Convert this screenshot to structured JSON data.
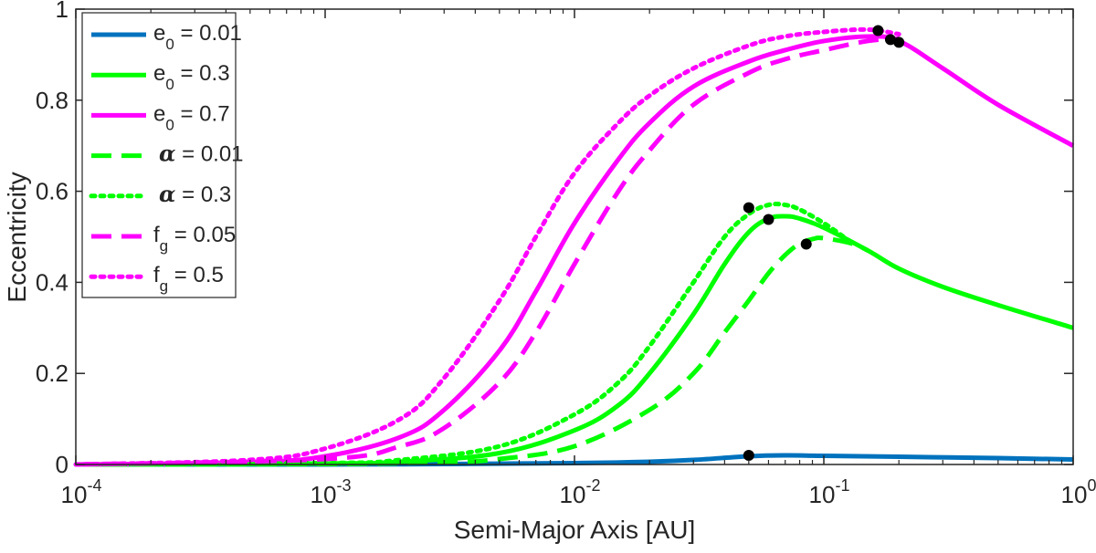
{
  "chart_data": {
    "type": "line",
    "title": "",
    "xlabel": "Semi-Major Axis [AU]",
    "ylabel": "Eccentricity",
    "xscale": "log",
    "xlim": [
      0.0001,
      1
    ],
    "ylim": [
      0,
      1
    ],
    "xticks": [
      {
        "value": 0.0001,
        "base": "10",
        "exp": "-4"
      },
      {
        "value": 0.001,
        "base": "10",
        "exp": "-3"
      },
      {
        "value": 0.01,
        "base": "10",
        "exp": "-2"
      },
      {
        "value": 0.1,
        "base": "10",
        "exp": "-1"
      },
      {
        "value": 1,
        "base": "10",
        "exp": "0"
      }
    ],
    "yticks": [
      {
        "value": 0,
        "label": "0"
      },
      {
        "value": 0.2,
        "label": "0.2"
      },
      {
        "value": 0.4,
        "label": "0.4"
      },
      {
        "value": 0.6,
        "label": "0.6"
      },
      {
        "value": 0.8,
        "label": "0.8"
      },
      {
        "value": 1,
        "label": "1"
      }
    ],
    "grid": false,
    "legend_position": "top-left",
    "series": [
      {
        "name": "e0 = 0.01",
        "legend": {
          "pre": "e",
          "sub": "0",
          "post": " = 0.01"
        },
        "color": "#0072BD",
        "style": "solid",
        "x": [
          0.0001,
          0.001,
          0.003,
          0.01,
          0.02,
          0.03,
          0.05,
          0.07,
          0.1,
          0.2,
          0.5,
          1
        ],
        "y": [
          0.0,
          0.0,
          0.001,
          0.003,
          0.006,
          0.01,
          0.018,
          0.02,
          0.019,
          0.017,
          0.014,
          0.011
        ],
        "marker": {
          "x": 0.05,
          "y": 0.02
        }
      },
      {
        "name": "e0 = 0.3",
        "legend": {
          "pre": "e",
          "sub": "0",
          "post": " = 0.3"
        },
        "color": "#00FF00",
        "style": "solid",
        "x": [
          0.0001,
          0.001,
          0.002,
          0.005,
          0.01,
          0.015,
          0.02,
          0.03,
          0.04,
          0.05,
          0.06,
          0.07,
          0.08,
          0.1,
          0.15,
          0.2,
          0.3,
          0.5,
          1
        ],
        "y": [
          0.0,
          0.002,
          0.006,
          0.025,
          0.075,
          0.13,
          0.2,
          0.33,
          0.44,
          0.51,
          0.54,
          0.545,
          0.54,
          0.52,
          0.47,
          0.43,
          0.39,
          0.35,
          0.3
        ],
        "marker": {
          "x": 0.06,
          "y": 0.538
        }
      },
      {
        "name": "e0 = 0.7",
        "legend": {
          "pre": "e",
          "sub": "0",
          "post": " = 0.7"
        },
        "color": "#FF00FF",
        "style": "solid",
        "x": [
          0.0001,
          0.0005,
          0.001,
          0.002,
          0.003,
          0.005,
          0.007,
          0.01,
          0.015,
          0.02,
          0.03,
          0.05,
          0.07,
          0.1,
          0.15,
          0.2,
          0.3,
          0.5,
          1
        ],
        "y": [
          0.0,
          0.005,
          0.018,
          0.06,
          0.12,
          0.25,
          0.38,
          0.53,
          0.67,
          0.75,
          0.83,
          0.885,
          0.91,
          0.93,
          0.94,
          0.93,
          0.87,
          0.79,
          0.7
        ],
        "marker": {
          "x": 0.2,
          "y": 0.927
        }
      },
      {
        "name": "α = 0.01",
        "legend": {
          "greek": "α",
          "post": " = 0.01"
        },
        "color": "#00FF00",
        "style": "dashed",
        "x": [
          0.0001,
          0.001,
          0.003,
          0.005,
          0.01,
          0.02,
          0.03,
          0.04,
          0.05,
          0.06,
          0.07,
          0.08,
          0.09,
          0.1,
          0.13,
          0.15
        ],
        "y": [
          0.0,
          0.001,
          0.005,
          0.012,
          0.04,
          0.12,
          0.2,
          0.29,
          0.36,
          0.42,
          0.46,
          0.485,
          0.495,
          0.497,
          0.485,
          0.47
        ],
        "marker": {
          "x": 0.085,
          "y": 0.484
        }
      },
      {
        "name": "α = 0.3",
        "legend": {
          "greek": "α",
          "post": " = 0.3"
        },
        "color": "#00FF00",
        "style": "dotted",
        "x": [
          0.0001,
          0.001,
          0.002,
          0.005,
          0.01,
          0.015,
          0.02,
          0.03,
          0.04,
          0.05,
          0.06,
          0.07,
          0.08,
          0.1,
          0.12
        ],
        "y": [
          0.0,
          0.003,
          0.01,
          0.04,
          0.11,
          0.18,
          0.26,
          0.4,
          0.5,
          0.55,
          0.57,
          0.57,
          0.56,
          0.53,
          0.5
        ],
        "marker": {
          "x": 0.05,
          "y": 0.564
        }
      },
      {
        "name": "fg = 0.05",
        "legend": {
          "pre": "f",
          "sub": "g",
          "post": " = 0.05"
        },
        "color": "#FF00FF",
        "style": "dashed",
        "x": [
          0.0001,
          0.001,
          0.002,
          0.003,
          0.005,
          0.007,
          0.01,
          0.015,
          0.02,
          0.03,
          0.05,
          0.07,
          0.1,
          0.15,
          0.2
        ],
        "y": [
          0.0,
          0.012,
          0.04,
          0.08,
          0.18,
          0.29,
          0.44,
          0.6,
          0.69,
          0.79,
          0.86,
          0.89,
          0.91,
          0.93,
          0.935
        ],
        "marker": {
          "x": 0.185,
          "y": 0.933
        }
      },
      {
        "name": "fg = 0.5",
        "legend": {
          "pre": "f",
          "sub": "g",
          "post": " = 0.5"
        },
        "color": "#FF00FF",
        "style": "dotted",
        "x": [
          0.0001,
          0.0005,
          0.001,
          0.002,
          0.003,
          0.005,
          0.007,
          0.01,
          0.015,
          0.02,
          0.03,
          0.05,
          0.07,
          0.1,
          0.15,
          0.2
        ],
        "y": [
          0.0,
          0.01,
          0.035,
          0.1,
          0.19,
          0.36,
          0.5,
          0.64,
          0.75,
          0.81,
          0.87,
          0.92,
          0.94,
          0.95,
          0.955,
          0.945
        ],
        "marker": {
          "x": 0.165,
          "y": 0.953
        }
      }
    ]
  }
}
